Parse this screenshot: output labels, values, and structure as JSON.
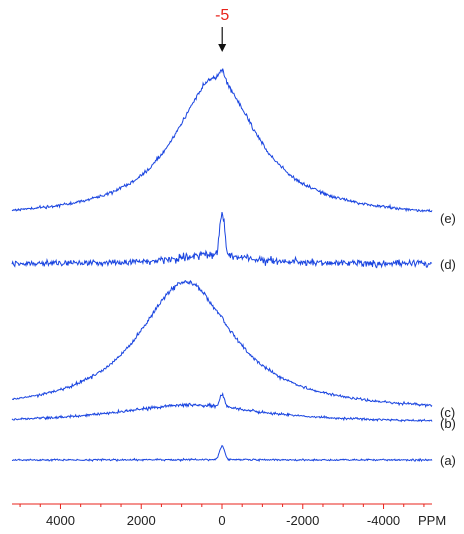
{
  "chart_data": {
    "type": "line",
    "title": "",
    "xlabel": "PPM",
    "ylabel": "",
    "x_reversed": true,
    "xlim": [
      5200,
      -5200
    ],
    "x_ticks": [
      4000,
      2000,
      0,
      -2000,
      -4000
    ],
    "x_tick_labels": [
      "4000",
      "2000",
      "0",
      "-2000",
      "-4000"
    ],
    "grid": false,
    "annotation": {
      "text": "-5",
      "x": -5,
      "color": "#e8231b"
    },
    "axis_color": "#e8231b",
    "series_color": "#1a45e0",
    "series": [
      {
        "label": "(a)",
        "broad_height": 0.06,
        "broad_center": 0,
        "broad_width": 2500,
        "peak_height": 1.0,
        "noise": 0.55
      },
      {
        "label": "(b)",
        "broad_height": 1.0,
        "broad_center": 800,
        "broad_width": 2800,
        "peak_height": 0.9,
        "noise": 0.45
      },
      {
        "label": "(c)",
        "broad_height": 1.0,
        "broad_center": 900,
        "broad_width": 1800,
        "peak_height": 0.15,
        "noise": 0.25
      },
      {
        "label": "(d)",
        "broad_height": 0.35,
        "broad_center": 200,
        "broad_width": 1300,
        "peak_height": 1.0,
        "noise": 0.55
      },
      {
        "label": "(e)",
        "broad_height": 1.0,
        "broad_center": 150,
        "broad_width": 1550,
        "peak_height": 0.18,
        "noise": 0.18
      }
    ]
  }
}
